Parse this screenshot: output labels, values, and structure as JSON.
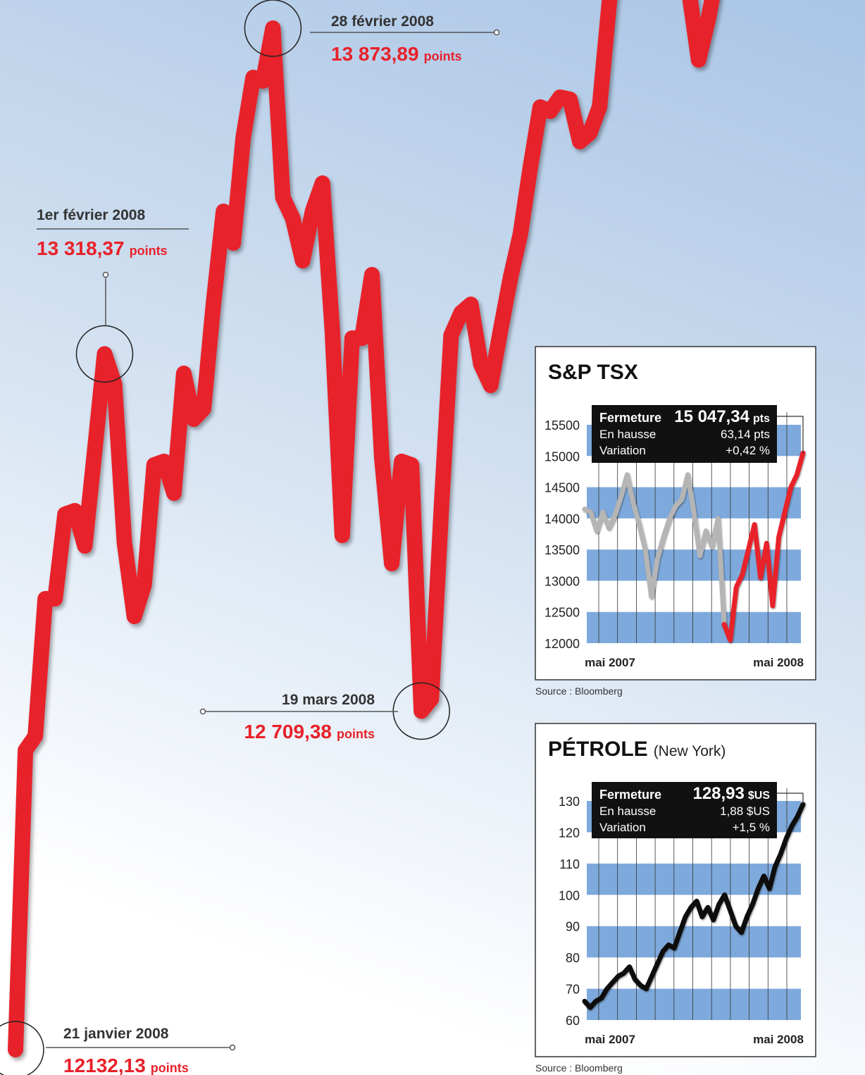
{
  "chart_data": [
    {
      "type": "line",
      "series": [
        {
          "color": "#e8212a",
          "values": [
            12132.13,
            12642.6,
            12666.7,
            12900.9,
            12900.9,
            13045.0,
            13051.0,
            12991.0,
            13153.1,
            13318.37,
            13267.2,
            12997.0,
            12870.8,
            12924.9,
            13129.1,
            13135.1,
            13081.0,
            13285.3,
            13207.2,
            13225.2,
            13405.4,
            13561.5,
            13507.5,
            13687.7,
            13789.8,
            13783.8,
            13873.89,
            13585.6,
            13549.5,
            13477.4,
            13561.5,
            13609.6,
            13357.3,
            13009.0,
            13345.3,
            13345.3,
            13453.4,
            13141.1,
            12960.9,
            13135.1,
            13129.1,
            12709.38,
            12730.3,
            13051.0,
            13350.1,
            13388.6,
            13403.0,
            13300.9,
            13264.8,
            13359.7,
            13448.6,
            13523.1,
            13636.0,
            13739.3,
            13732.1,
            13756.1,
            13752.5,
            13680.4,
            13694.9,
            13740.0,
            13921.9,
            14045.6,
            14085.2,
            14097.3,
            14088.9,
            14080.4,
            14074.4,
            14038.4,
            13939.9,
            13819.8,
            13890.7,
            13981.9,
            14066.0,
            14150.1
          ]
        }
      ],
      "annotations": [
        {
          "date": "21 janvier 2008",
          "value": 12132.13,
          "value_label": "12132,13",
          "unit": "points"
        },
        {
          "date": "1er février 2008",
          "value": 13318.37,
          "value_label": "13 318,37",
          "unit": "points"
        },
        {
          "date": "28 février 2008",
          "value": 13873.89,
          "value_label": "13 873,89",
          "unit": "points"
        },
        {
          "date": "19 mars 2008",
          "value": 12709.38,
          "value_label": "12 709,38",
          "unit": "points"
        }
      ]
    },
    {
      "type": "line",
      "title": "S&P TSX",
      "ylim": [
        12000,
        15500
      ],
      "yticks": [
        12000,
        12500,
        13000,
        13500,
        14000,
        14500,
        15000,
        15500
      ],
      "x_labels": [
        "mai 2007",
        "mai 2008"
      ],
      "series": [
        {
          "color": "#b5b5b5",
          "values": [
            14150,
            14100,
            13800,
            14100,
            13850,
            14050,
            14350,
            14700,
            14250,
            13900,
            13500,
            12750,
            13350,
            13700,
            14000,
            14200,
            14300,
            14700,
            14100,
            13400,
            13800,
            13550,
            14000,
            12300,
            null,
            null,
            null,
            null,
            null,
            null,
            null,
            null,
            null,
            null,
            null,
            null,
            null
          ]
        },
        {
          "color": "#e8212a",
          "values": [
            null,
            null,
            null,
            null,
            null,
            null,
            null,
            null,
            null,
            null,
            null,
            null,
            null,
            null,
            null,
            null,
            null,
            null,
            null,
            null,
            null,
            null,
            null,
            12300,
            12050,
            12900,
            13100,
            13500,
            13900,
            13050,
            13600,
            12600,
            13700,
            14100,
            14500,
            14700,
            15047.34
          ]
        }
      ],
      "info": {
        "close_label": "Fermeture",
        "close": 15047.34,
        "close_value_label": "15 047,34",
        "close_unit": "pts",
        "rows": [
          {
            "label": "En hausse",
            "value": "63,14 pts"
          },
          {
            "label": "Variation",
            "value": "+0,42 %"
          }
        ]
      },
      "source": "Source : Bloomberg"
    },
    {
      "type": "line",
      "title": "PÉTROLE",
      "subtitle": "(New York)",
      "ylim": [
        60,
        130
      ],
      "yticks": [
        60,
        70,
        80,
        90,
        100,
        110,
        120,
        130
      ],
      "x_labels": [
        "mai 2007",
        "mai 2008"
      ],
      "series": [
        {
          "color": "#111111",
          "values": [
            66,
            64,
            66,
            67,
            70,
            72,
            74,
            75,
            77,
            73,
            71,
            70,
            74,
            78,
            82,
            84,
            83,
            88,
            93,
            96,
            98,
            93,
            96,
            92,
            97,
            100,
            95,
            90,
            88,
            93,
            97,
            102,
            106,
            102,
            109,
            113,
            118,
            122,
            125,
            128.93
          ]
        }
      ],
      "info": {
        "close_label": "Fermeture",
        "close": 128.93,
        "close_value_label": "128,93",
        "close_unit": "$US",
        "rows": [
          {
            "label": "En hausse",
            "value": "1,88 $US"
          },
          {
            "label": "Variation",
            "value": "+1,5 %"
          }
        ]
      },
      "source": "Source : Bloomberg"
    }
  ]
}
